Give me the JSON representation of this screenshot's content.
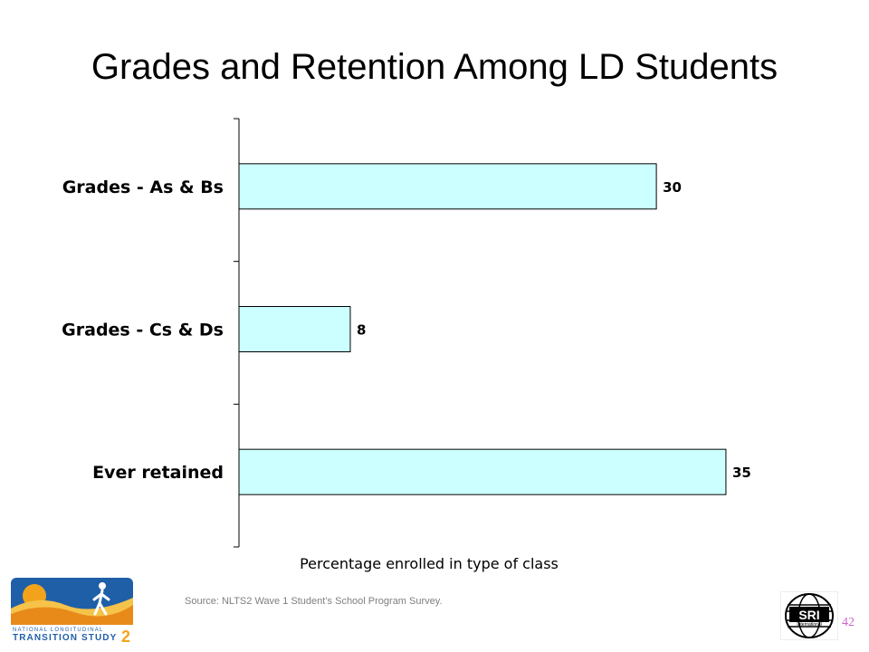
{
  "title": "Grades and Retention Among LD Students",
  "source": "Source: NLTS2 Wave 1 Student’s School Program Survey.",
  "page_number": "42",
  "logos": {
    "left": {
      "name": "nlts2-logo",
      "line1": "NATIONAL LONGITUDINAL",
      "line2": "TRANSITION STUDY",
      "numeral": "2"
    },
    "right": {
      "name": "sri-international-logo",
      "text": "SRI",
      "subtext": "International"
    }
  },
  "colors": {
    "bar_fill": "#ccffff",
    "bar_stroke": "#000000",
    "page_number": "#cc66cc",
    "source": "#7f7f7f"
  },
  "chart_data": {
    "type": "bar",
    "orientation": "horizontal",
    "categories": [
      "Grades - As & Bs",
      "Grades - Cs & Ds",
      "Ever retained"
    ],
    "values": [
      30,
      8,
      35
    ],
    "data_labels": [
      "30",
      "8",
      "35"
    ],
    "xlabel": "Percentage enrolled in type of class",
    "ylabel": "",
    "xlim": [
      0,
      35
    ],
    "grid": false,
    "legend": "none"
  }
}
